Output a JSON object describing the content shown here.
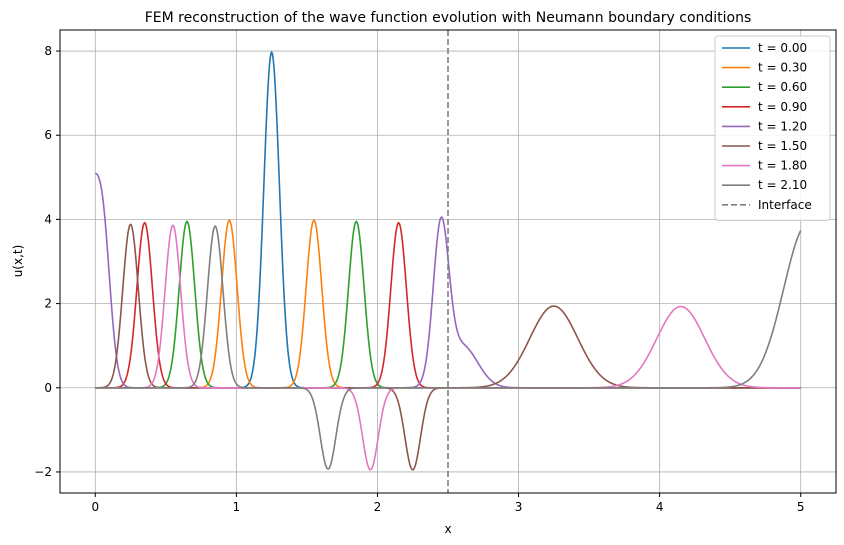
{
  "chart_data": {
    "type": "line",
    "title": "FEM reconstruction of the wave function evolution with Neumann boundary conditions",
    "xlabel": "x",
    "ylabel": "u(x,t)",
    "xlim": [
      -0.25,
      5.25
    ],
    "ylim": [
      -2.5,
      8.5
    ],
    "xticks": [
      0,
      1,
      2,
      3,
      4,
      5
    ],
    "yticks": [
      -2,
      0,
      2,
      4,
      6,
      8
    ],
    "grid": true,
    "legend_position": "top-right",
    "series": [
      {
        "name": "t = 0.00",
        "color": "#1f77b4",
        "gaussians": [
          [
            1.25,
            7.97,
            0.055
          ]
        ]
      },
      {
        "name": "t = 0.30",
        "color": "#ff7f0e",
        "gaussians": [
          [
            0.95,
            3.98,
            0.055
          ],
          [
            1.55,
            3.98,
            0.055
          ]
        ]
      },
      {
        "name": "t = 0.60",
        "color": "#2ca02c",
        "gaussians": [
          [
            0.65,
            3.95,
            0.055
          ],
          [
            1.85,
            3.95,
            0.055
          ]
        ]
      },
      {
        "name": "t = 0.90",
        "color": "#d62728",
        "gaussians": [
          [
            0.35,
            3.92,
            0.055
          ],
          [
            2.15,
            3.92,
            0.055
          ]
        ]
      },
      {
        "name": "t = 1.20",
        "color": "#9467bd",
        "gaussians": [
          [
            0.05,
            3.85,
            0.055
          ],
          [
            -0.05,
            3.85,
            0.055
          ],
          [
            2.45,
            3.65,
            0.055
          ],
          [
            2.6,
            1.0,
            0.11
          ]
        ]
      },
      {
        "name": "t = 1.50",
        "color": "#8c564b",
        "gaussians": [
          [
            0.25,
            3.88,
            0.055
          ],
          [
            2.25,
            -1.95,
            0.055
          ],
          [
            3.25,
            1.94,
            0.17
          ]
        ]
      },
      {
        "name": "t = 1.80",
        "color": "#e377c2",
        "gaussians": [
          [
            0.55,
            3.86,
            0.055
          ],
          [
            1.95,
            -1.95,
            0.055
          ],
          [
            4.15,
            1.93,
            0.17
          ]
        ]
      },
      {
        "name": "t = 2.10",
        "color": "#7f7f7f",
        "gaussians": [
          [
            0.85,
            3.84,
            0.055
          ],
          [
            1.65,
            -1.93,
            0.055
          ],
          [
            5.05,
            3.9,
            0.17
          ]
        ]
      }
    ],
    "interface": {
      "name": "Interface",
      "x": 2.5,
      "color": "#7f7f7f"
    }
  }
}
